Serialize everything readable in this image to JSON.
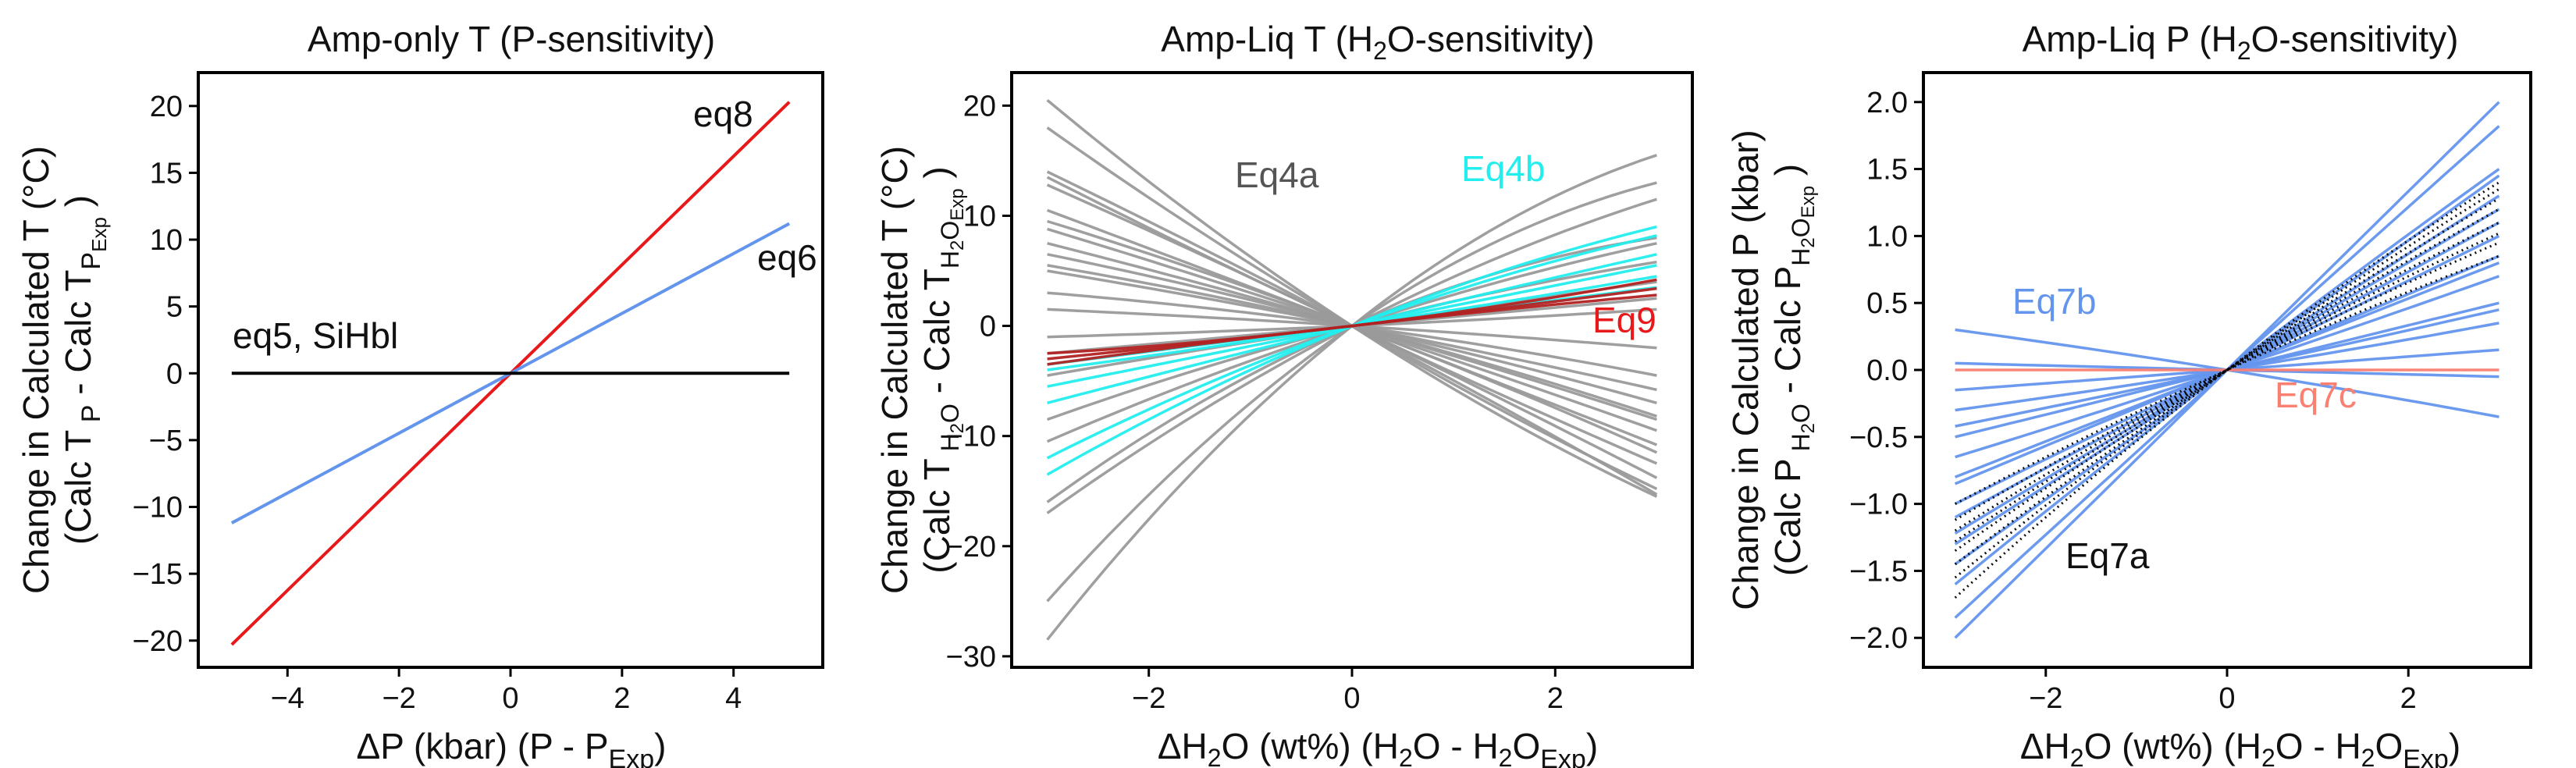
{
  "figure": {
    "panels": [
      {
        "title": "Amp-only T (P-sensitivity)",
        "xlabel": "ΔP (kbar) (P - P_Exp)",
        "ylabel_line1": "Change in Calculated T (°C)",
        "ylabel_line2": "(Calc T_P - Calc T_P_Exp)",
        "xticks": [
          "−4",
          "−2",
          "0",
          "2",
          "4"
        ],
        "yticks": [
          "−20",
          "−15",
          "−10",
          "−5",
          "0",
          "5",
          "10",
          "15",
          "20"
        ],
        "annotations": [
          "eq8",
          "eq6",
          "eq5, SiHbl"
        ]
      },
      {
        "title": "Amp-Liq T (H2O-sensitivity)",
        "xlabel": "ΔH2O (wt%) (H2O - H2O_Exp)",
        "ylabel_line1": "Change in Calculated T (°C)",
        "ylabel_line2": "(Calc T_H2O - Calc T_H2O_Exp)",
        "xticks": [
          "−2",
          "0",
          "2"
        ],
        "yticks": [
          "−30",
          "−20",
          "−10",
          "0",
          "10",
          "20"
        ],
        "annotations": [
          "Eq4a",
          "Eq4b",
          "Eq9"
        ]
      },
      {
        "title": "Amp-Liq P (H2O-sensitivity)",
        "xlabel": "ΔH2O (wt%) (H2O - H2O_Exp)",
        "ylabel_line1": "Change in Calculated P (kbar)",
        "ylabel_line2": "(Calc P_H2O - Calc P_H2O_Exp)",
        "xticks": [
          "−2",
          "0",
          "2"
        ],
        "yticks": [
          "−2.0",
          "−1.5",
          "−1.0",
          "−0.5",
          "0.0",
          "0.5",
          "1.0",
          "1.5",
          "2.0"
        ],
        "annotations": [
          "Eq7b",
          "Eq7c",
          "Eq7a"
        ]
      }
    ]
  },
  "colors": {
    "red": "#e8191a",
    "blue": "#6495ed",
    "black": "#000000",
    "grey": "#9a9a9a",
    "cyan": "#22eeee",
    "darkred": "#b22222",
    "salmon": "#fa8072",
    "darkgrey": "#555555"
  },
  "chart_data": [
    {
      "type": "line",
      "title": "Amp-only T (P-sensitivity)",
      "xlabel": "ΔP (kbar) (P - P_Exp)",
      "ylabel": "Change in Calculated T (°C) (Calc T_P - Calc T_P_Exp)",
      "xlim": [
        -5.6,
        5.6
      ],
      "ylim": [
        -22,
        22.5
      ],
      "series": [
        {
          "name": "eq8",
          "color": "red",
          "x": [
            -5,
            5
          ],
          "y": [
            -20.3,
            20.3
          ]
        },
        {
          "name": "eq6",
          "color": "blue",
          "x": [
            -5,
            5
          ],
          "y": [
            -11.2,
            11.2
          ]
        },
        {
          "name": "eq5, SiHbl",
          "color": "black",
          "x": [
            -5,
            5
          ],
          "y": [
            0,
            0
          ]
        }
      ]
    },
    {
      "type": "line",
      "title": "Amp-Liq T (H2O-sensitivity)",
      "xlabel": "ΔH2O (wt%) (H2O - H2O_Exp)",
      "ylabel": "Change in Calculated T (°C) (Calc T_H2O - Calc T_H2O_Exp)",
      "xlim": [
        -3.35,
        3.35
      ],
      "ylim": [
        -31,
        23
      ],
      "groups": [
        {
          "name": "Eq4a",
          "color": "grey",
          "curves": [
            {
              "left": 20.5,
              "right": -15.5
            },
            {
              "left": 18.0,
              "right": -14.8
            },
            {
              "left": 14.0,
              "right": -15.3
            },
            {
              "left": 13.5,
              "right": -12.5
            },
            {
              "left": 12.8,
              "right": -13.8
            },
            {
              "left": 10.5,
              "right": -10.8
            },
            {
              "left": 9.5,
              "right": -11.5
            },
            {
              "left": 8.8,
              "right": -9.5
            },
            {
              "left": 6.5,
              "right": -8.2
            },
            {
              "left": 5.0,
              "right": -5.8
            },
            {
              "left": 3.0,
              "right": -4.5
            },
            {
              "left": 1.5,
              "right": -2.0
            },
            {
              "left": -1.0,
              "right": 1.5
            },
            {
              "left": -2.5,
              "right": 2.5
            },
            {
              "left": -4.5,
              "right": 4.0
            },
            {
              "left": -8.5,
              "right": 5.8
            },
            {
              "left": -10.5,
              "right": 7.5
            },
            {
              "left": -16.0,
              "right": 8.0
            },
            {
              "left": -17.0,
              "right": 11.5
            },
            {
              "left": -25.0,
              "right": 13.0
            },
            {
              "left": -28.5,
              "right": 15.5
            },
            {
              "left": 5.5,
              "right": -7.0
            },
            {
              "left": 7.5,
              "right": -8.5
            }
          ]
        },
        {
          "name": "Eq4b",
          "color": "cyan",
          "curves": [
            {
              "left": -13.5,
              "right": 9.0
            },
            {
              "left": -12.0,
              "right": 8.2
            },
            {
              "left": -7.0,
              "right": 6.5
            },
            {
              "left": -5.5,
              "right": 5.5
            },
            {
              "left": -4.0,
              "right": 4.5
            },
            {
              "left": -3.5,
              "right": 3.5
            }
          ]
        },
        {
          "name": "Eq9",
          "color": "darkred",
          "curves": [
            {
              "left": -2.5,
              "right": 4.2
            },
            {
              "left": -3.0,
              "right": 3.4
            },
            {
              "left": -3.5,
              "right": 2.8
            }
          ]
        }
      ]
    },
    {
      "type": "line",
      "title": "Amp-Liq P (H2O-sensitivity)",
      "xlabel": "ΔH2O (wt%) (H2O - H2O_Exp)",
      "ylabel": "Change in Calculated P (kbar) (Calc P_H2O - Calc P_H2O_Exp)",
      "xlim": [
        -3.35,
        3.35
      ],
      "ylim": [
        -2.22,
        2.22
      ],
      "groups": [
        {
          "name": "Eq7b",
          "color": "blue",
          "curves": [
            {
              "left": -2.0,
              "right": 2.0
            },
            {
              "left": -1.85,
              "right": 1.82
            },
            {
              "left": -1.6,
              "right": 1.5
            },
            {
              "left": -1.45,
              "right": 1.45
            },
            {
              "left": -1.3,
              "right": 1.3
            },
            {
              "left": -1.22,
              "right": 1.2
            },
            {
              "left": -1.1,
              "right": 1.1
            },
            {
              "left": -1.0,
              "right": 1.0
            },
            {
              "left": -0.85,
              "right": 0.85
            },
            {
              "left": -0.8,
              "right": 0.8
            },
            {
              "left": -0.65,
              "right": 0.7
            },
            {
              "left": -0.5,
              "right": 0.5
            },
            {
              "left": -0.42,
              "right": 0.45
            },
            {
              "left": -0.3,
              "right": 0.35
            },
            {
              "left": -0.15,
              "right": 0.15
            },
            {
              "left": 0.3,
              "right": -0.35
            },
            {
              "left": 0.05,
              "right": -0.05
            }
          ]
        },
        {
          "name": "Eq7c",
          "color": "salmon",
          "curves": [
            {
              "left": 0.0,
              "right": 0.0
            }
          ]
        },
        {
          "name": "Eq7a",
          "color": "black",
          "dotted": true,
          "curves": [
            {
              "left": -1.7,
              "right": 1.4
            },
            {
              "left": -1.55,
              "right": 1.35
            },
            {
              "left": -1.45,
              "right": 1.28
            },
            {
              "left": -1.35,
              "right": 1.2
            },
            {
              "left": -1.28,
              "right": 1.1
            },
            {
              "left": -1.2,
              "right": 1.02
            },
            {
              "left": -1.12,
              "right": 0.95
            },
            {
              "left": -1.0,
              "right": 0.85
            }
          ]
        }
      ]
    }
  ]
}
